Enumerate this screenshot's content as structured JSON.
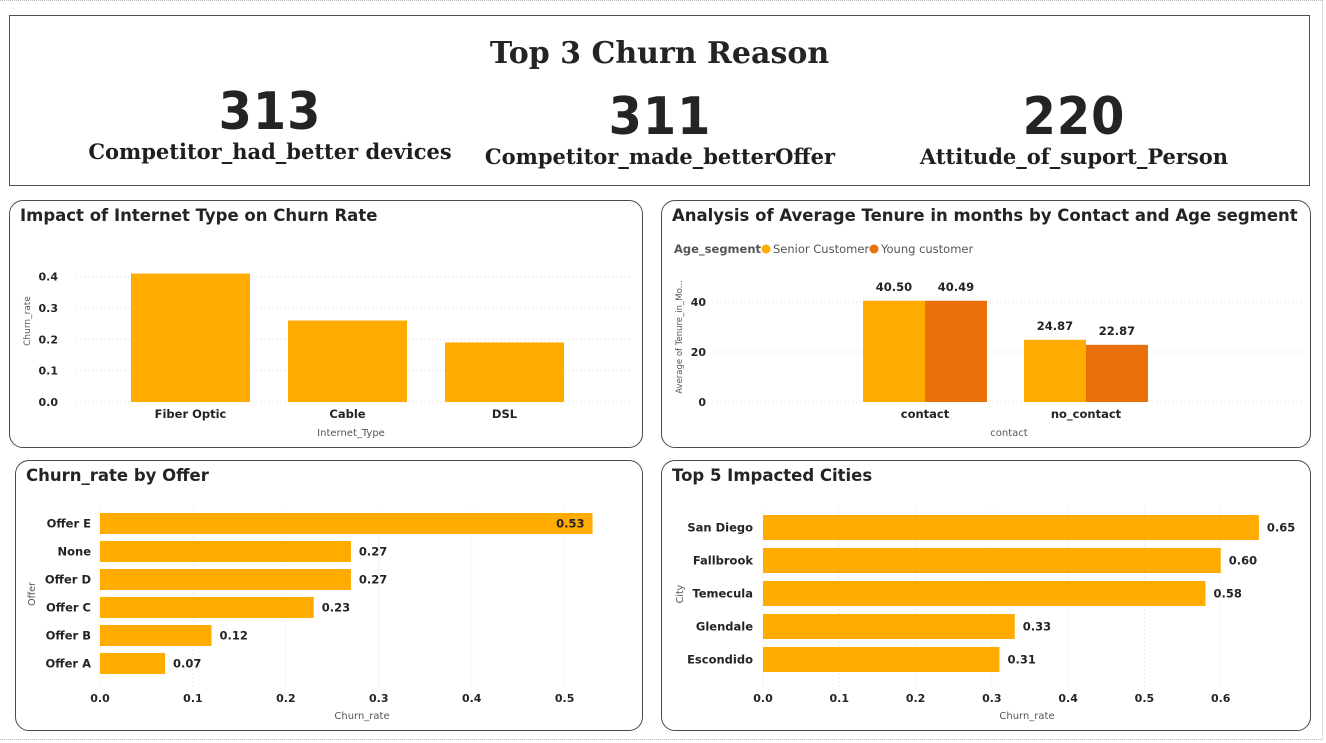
{
  "kpis": {
    "title": "Top 3 Churn Reason",
    "items": [
      {
        "value": "313",
        "label": "Competitor_had_better devices"
      },
      {
        "value": "311",
        "label": "Competitor_made_betterOffer"
      },
      {
        "value": "220",
        "label": "Attitude_of_suport_Person"
      }
    ]
  },
  "colors": {
    "primary": "#FFAB00",
    "secondary": "#E8710A",
    "grid": "#d9d9d9"
  },
  "chart_data": [
    {
      "id": "internet",
      "type": "bar",
      "title": "Impact of Internet Type on Churn Rate",
      "xlabel": "Internet_Type",
      "ylabel": "Churn_rate",
      "categories": [
        "Fiber Optic",
        "Cable",
        "DSL"
      ],
      "values": [
        0.41,
        0.26,
        0.19
      ],
      "ylim": [
        0,
        0.45
      ],
      "yticks": [
        "0.0",
        "0.1",
        "0.2",
        "0.3",
        "0.4"
      ],
      "grid": true
    },
    {
      "id": "tenure",
      "type": "bar",
      "title": "Analysis of Average Tenure in months by Contact and Age segment",
      "legend_title": "Age_segment",
      "legend_position": "top-left",
      "xlabel": "contact",
      "ylabel": "Average of Tenure_in_Mo...",
      "categories": [
        "contact",
        "no_contact"
      ],
      "series": [
        {
          "name": "Senior Customer",
          "values": [
            40.5,
            24.87
          ],
          "labels": [
            "40.50",
            "24.87"
          ]
        },
        {
          "name": "Young customer",
          "values": [
            40.49,
            22.87
          ],
          "labels": [
            "40.49",
            "22.87"
          ]
        }
      ],
      "ylim": [
        0,
        48
      ],
      "yticks": [
        "0",
        "20",
        "40"
      ],
      "grid": true
    },
    {
      "id": "offer",
      "type": "bar",
      "orientation": "horizontal",
      "title": "Churn_rate by Offer",
      "xlabel": "Churn_rate",
      "ylabel": "Offer",
      "categories": [
        "Offer E",
        "None",
        "Offer D",
        "Offer C",
        "Offer B",
        "Offer A"
      ],
      "values": [
        0.53,
        0.27,
        0.27,
        0.23,
        0.12,
        0.07
      ],
      "labels": [
        "0.53",
        "0.27",
        "0.27",
        "0.23",
        "0.12",
        "0.07"
      ],
      "xlim": [
        0,
        0.58
      ],
      "xticks": [
        "0.0",
        "0.1",
        "0.2",
        "0.3",
        "0.4",
        "0.5"
      ],
      "grid": true
    },
    {
      "id": "cities",
      "type": "bar",
      "orientation": "horizontal",
      "title": "Top 5 Impacted Cities",
      "xlabel": "Churn_rate",
      "ylabel": "City",
      "categories": [
        "San Diego",
        "Fallbrook",
        "Temecula",
        "Glendale",
        "Escondido"
      ],
      "values": [
        0.65,
        0.6,
        0.58,
        0.33,
        0.31
      ],
      "labels": [
        "0.65",
        "0.60",
        "0.58",
        "0.33",
        "0.31"
      ],
      "xlim": [
        0,
        0.7
      ],
      "xticks": [
        "0.0",
        "0.1",
        "0.2",
        "0.3",
        "0.4",
        "0.5",
        "0.6"
      ],
      "grid": true
    }
  ]
}
